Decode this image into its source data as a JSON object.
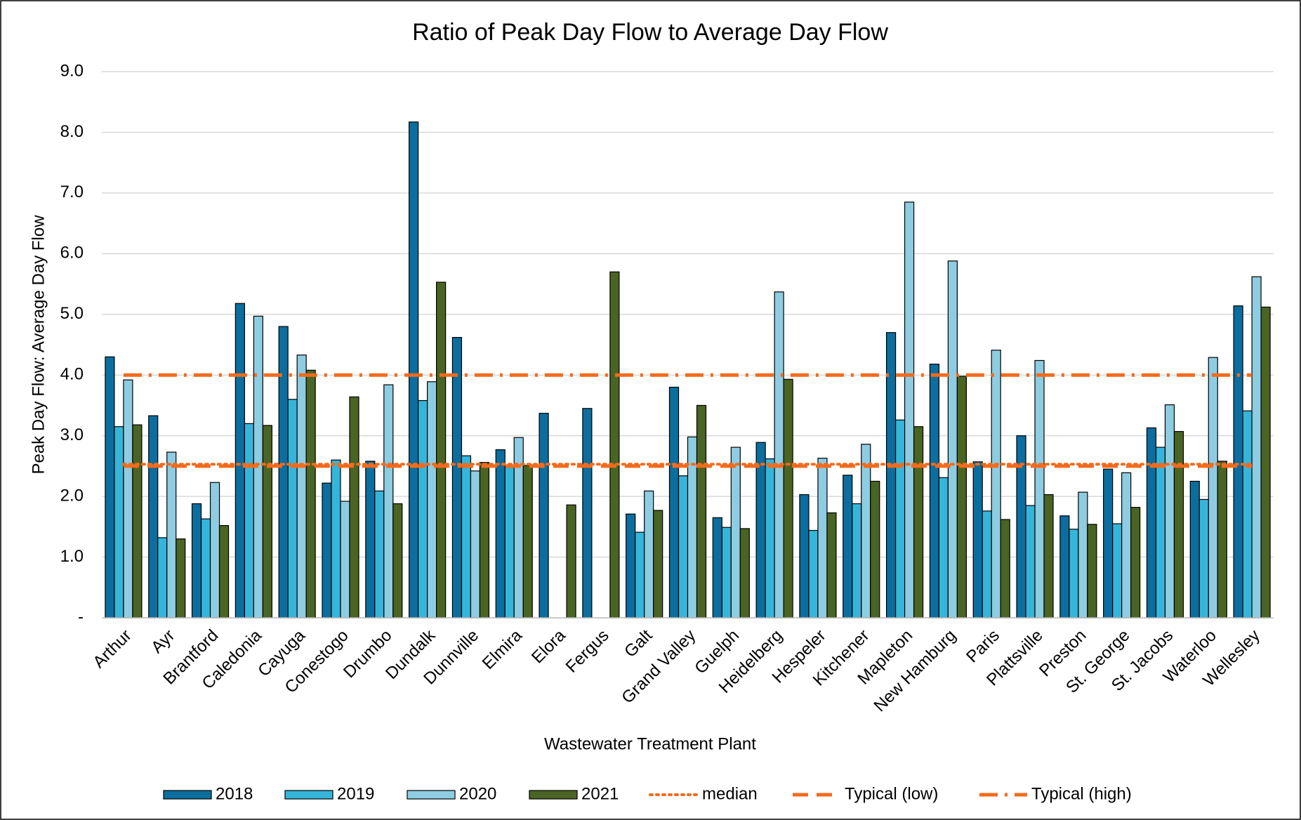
{
  "chart_data": {
    "type": "bar",
    "title": "Ratio of Peak Day Flow to Average Day Flow",
    "x_label": "Wastewater Treatment Plant",
    "y_label": "Peak Day Flow: Average Day Flow",
    "categories": [
      "Arthur",
      "Ayr",
      "Brantford",
      "Caledonia",
      "Cayuga",
      "Conestogo",
      "Drumbo",
      "Dundalk",
      "Dunnville",
      "Elmira",
      "Elora",
      "Fergus",
      "Galt",
      "Grand Valley",
      "Guelph",
      "Heidelberg",
      "Hespeler",
      "Kitchener",
      "Mapleton",
      "New Hamburg",
      "Paris",
      "Plattsville",
      "Preston",
      "St. George",
      "St. Jacobs",
      "Waterloo",
      "Wellesley"
    ],
    "series": [
      {
        "name": "2018",
        "color": "#0b6e9e",
        "values": [
          4.3,
          3.33,
          1.88,
          5.18,
          4.8,
          2.22,
          2.58,
          8.17,
          4.62,
          2.77,
          3.37,
          3.45,
          1.71,
          3.8,
          1.65,
          2.89,
          2.03,
          2.35,
          4.7,
          4.18,
          2.57,
          3.0,
          1.68,
          2.45,
          3.13,
          2.25,
          5.14
        ]
      },
      {
        "name": "2019",
        "color": "#36b5da",
        "values": [
          3.15,
          1.32,
          1.63,
          3.2,
          3.6,
          2.6,
          2.09,
          3.58,
          2.67,
          2.48,
          null,
          null,
          1.41,
          2.34,
          1.49,
          2.62,
          1.44,
          1.88,
          3.26,
          2.31,
          1.76,
          1.85,
          1.46,
          1.55,
          2.81,
          1.95,
          3.41
        ]
      },
      {
        "name": "2020",
        "color": "#8ecce2",
        "values": [
          3.92,
          2.73,
          2.23,
          4.97,
          4.33,
          1.92,
          3.84,
          3.89,
          2.42,
          2.97,
          null,
          null,
          2.09,
          2.98,
          2.81,
          5.37,
          2.63,
          2.86,
          6.85,
          5.88,
          4.41,
          4.24,
          2.07,
          2.39,
          3.51,
          4.29,
          5.62
        ]
      },
      {
        "name": "2021",
        "color": "#4a6423",
        "values": [
          3.18,
          1.3,
          1.52,
          3.17,
          4.08,
          3.64,
          1.88,
          5.53,
          2.56,
          2.51,
          1.86,
          5.7,
          1.77,
          3.5,
          1.47,
          3.93,
          1.73,
          2.25,
          3.15,
          3.98,
          1.62,
          2.03,
          1.54,
          1.82,
          3.07,
          2.58,
          5.12
        ]
      },
      {
        "name": "median",
        "type": "line",
        "line_style": "dotted",
        "color": "#f26b1d",
        "values": [
          2.53,
          2.53,
          2.53,
          2.53,
          2.53,
          2.53,
          2.53,
          2.53,
          2.53,
          2.53,
          2.53,
          2.53,
          2.53,
          2.53,
          2.53,
          2.53,
          2.53,
          2.53,
          2.53,
          2.53,
          2.53,
          2.53,
          2.53,
          2.53,
          2.53,
          2.53,
          2.53
        ]
      },
      {
        "name": "Typical (low)",
        "type": "line",
        "line_style": "dashed",
        "color": "#f26b1d",
        "values": [
          2.5,
          2.5,
          2.5,
          2.5,
          2.5,
          2.5,
          2.5,
          2.5,
          2.5,
          2.5,
          2.5,
          2.5,
          2.5,
          2.5,
          2.5,
          2.5,
          2.5,
          2.5,
          2.5,
          2.5,
          2.5,
          2.5,
          2.5,
          2.5,
          2.5,
          2.5,
          2.5
        ]
      },
      {
        "name": "Typical (high)",
        "type": "line",
        "line_style": "dashdot",
        "color": "#f26b1d",
        "values": [
          4,
          4,
          4,
          4,
          4,
          4,
          4,
          4,
          4,
          4,
          4,
          4,
          4,
          4,
          4,
          4,
          4,
          4,
          4,
          4,
          4,
          4,
          4,
          4,
          4,
          4,
          4
        ]
      }
    ],
    "ylim": [
      0,
      9
    ],
    "yticks": [
      {
        "value": 0,
        "label": "-"
      },
      {
        "value": 1,
        "label": "1.0"
      },
      {
        "value": 2,
        "label": "2.0"
      },
      {
        "value": 3,
        "label": "3.0"
      },
      {
        "value": 4,
        "label": "4.0"
      },
      {
        "value": 5,
        "label": "5.0"
      },
      {
        "value": 6,
        "label": "6.0"
      },
      {
        "value": 7,
        "label": "7.0"
      },
      {
        "value": 8,
        "label": "8.0"
      },
      {
        "value": 9,
        "label": "9.0"
      }
    ],
    "grid": true,
    "legend": "bottom"
  }
}
